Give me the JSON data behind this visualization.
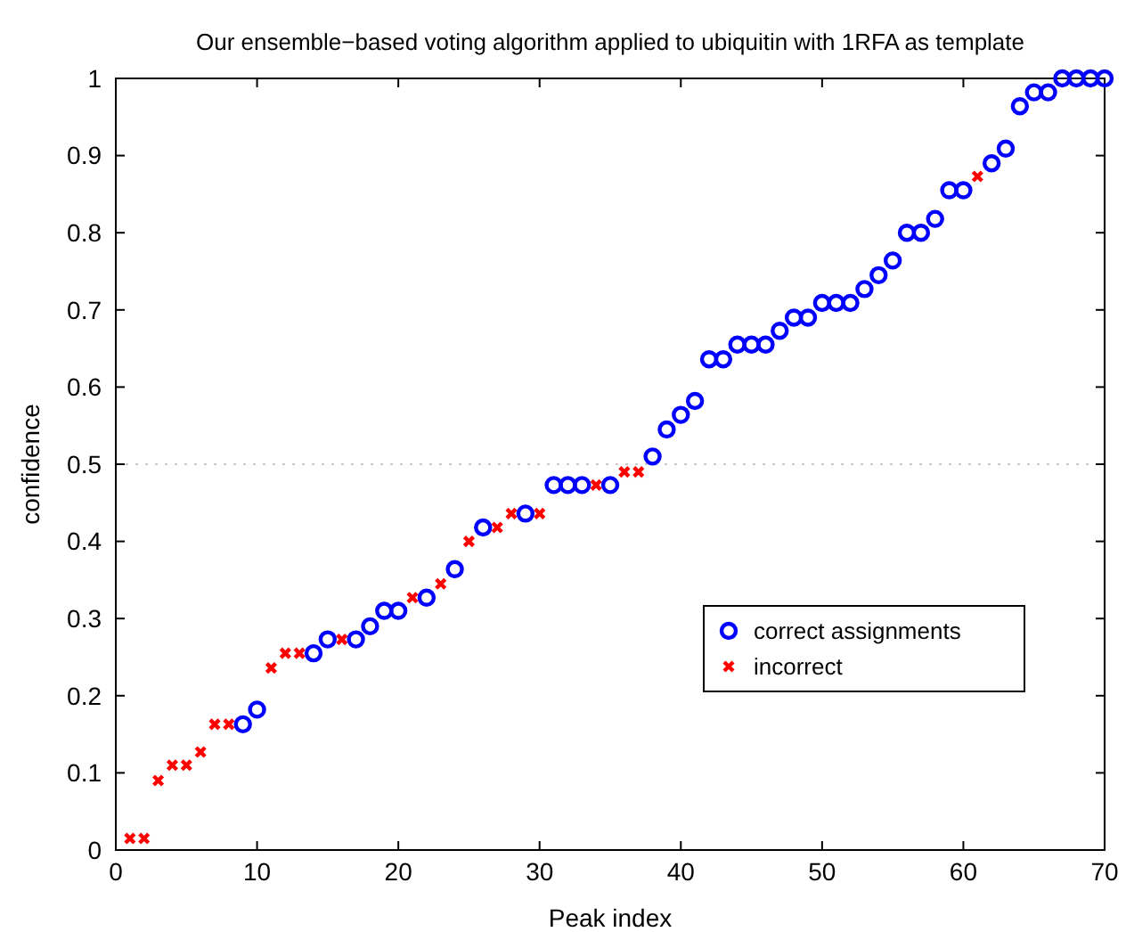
{
  "chart_data": {
    "type": "scatter",
    "title": "Our ensemble−based voting algorithm applied to ubiquitin with 1RFA as template",
    "xlabel": "Peak index",
    "ylabel": "confidence",
    "xlim": [
      0,
      70
    ],
    "ylim": [
      0,
      1
    ],
    "xticks": [
      0,
      10,
      20,
      30,
      40,
      50,
      60,
      70
    ],
    "yticks": [
      0,
      0.1,
      0.2,
      0.3,
      0.4,
      0.5,
      0.6,
      0.7,
      0.8,
      0.9,
      1
    ],
    "grid": false,
    "legend": "right",
    "ref_lines": [
      {
        "axis": "y",
        "value": 0.5,
        "color": "#c8c8c8",
        "line_style": "dotted"
      }
    ],
    "series": [
      {
        "name": "correct assignments",
        "color": "#0000ff",
        "marker": "circle",
        "x": [
          9,
          10,
          14,
          15,
          17,
          18,
          19,
          20,
          22,
          24,
          26,
          29,
          31,
          32,
          33,
          35,
          38,
          39,
          40,
          41,
          42,
          43,
          44,
          45,
          46,
          47,
          48,
          49,
          50,
          51,
          52,
          53,
          54,
          55,
          56,
          57,
          58,
          59,
          60,
          62,
          63,
          64,
          65,
          66,
          67,
          68,
          69,
          70
        ],
        "values": [
          0.163,
          0.182,
          0.255,
          0.273,
          0.273,
          0.29,
          0.31,
          0.31,
          0.327,
          0.364,
          0.418,
          0.436,
          0.473,
          0.473,
          0.473,
          0.473,
          0.51,
          0.545,
          0.564,
          0.582,
          0.636,
          0.636,
          0.655,
          0.655,
          0.655,
          0.673,
          0.69,
          0.69,
          0.709,
          0.709,
          0.709,
          0.727,
          0.745,
          0.764,
          0.8,
          0.8,
          0.818,
          0.855,
          0.855,
          0.89,
          0.909,
          0.964,
          0.982,
          0.982,
          1,
          1,
          1,
          1
        ]
      },
      {
        "name": "incorrect",
        "color": "#ff0000",
        "marker": "cross",
        "x": [
          1,
          2,
          3,
          4,
          5,
          6,
          7,
          8,
          11,
          12,
          13,
          16,
          21,
          23,
          25,
          27,
          28,
          30,
          34,
          36,
          37,
          61
        ],
        "values": [
          0.015,
          0.015,
          0.09,
          0.11,
          0.11,
          0.127,
          0.163,
          0.163,
          0.236,
          0.255,
          0.255,
          0.273,
          0.327,
          0.345,
          0.4,
          0.418,
          0.436,
          0.436,
          0.473,
          0.49,
          0.49,
          0.873
        ]
      }
    ]
  }
}
